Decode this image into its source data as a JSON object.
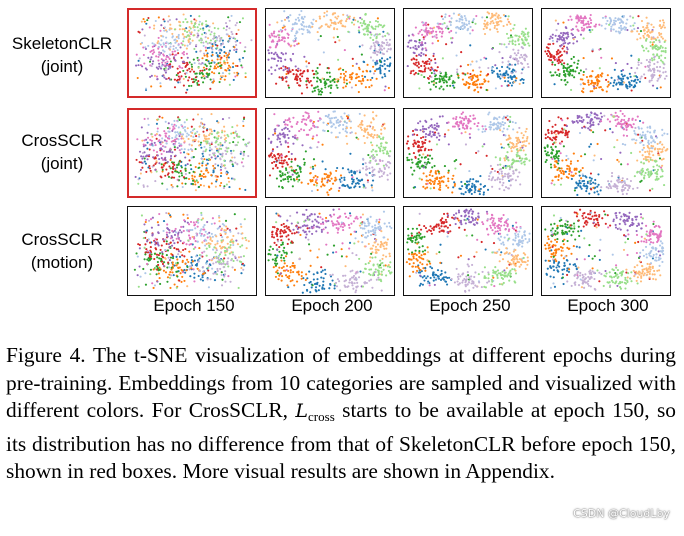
{
  "figure": {
    "rows": [
      {
        "line1": "SkeletonCLR",
        "line2": "(joint)"
      },
      {
        "line1": "CrosSCLR",
        "line2": "(joint)"
      },
      {
        "line1": "CrosSCLR",
        "line2": "(motion)"
      }
    ],
    "columns": [
      "Epoch 150",
      "Epoch 200",
      "Epoch 250",
      "Epoch 300"
    ],
    "red_boxes": [
      [
        0,
        0
      ],
      [
        1,
        0
      ]
    ],
    "category_colors": [
      "#1f77b4",
      "#ff7f0e",
      "#2ca02c",
      "#d62728",
      "#9467bd",
      "#e377c2",
      "#aec7e8",
      "#ffbb78",
      "#98df8a",
      "#c5b0d5"
    ],
    "highlight_color": "#d42a2a"
  },
  "caption": {
    "p1": "Figure 4. The t-SNE visualization of embeddings at different epochs during pre-training. Embeddings from 10 categories are sampled and visualized with different colors. For CrosSCLR, ",
    "symbol": "L",
    "subscript": "cross",
    "p2": " starts to be available at epoch 150, so its distribution has no difference from that of SkeletonCLR before epoch 150, shown in red boxes. More visual results are shown in Appendix."
  },
  "watermark": "CSDN @CloudLby"
}
